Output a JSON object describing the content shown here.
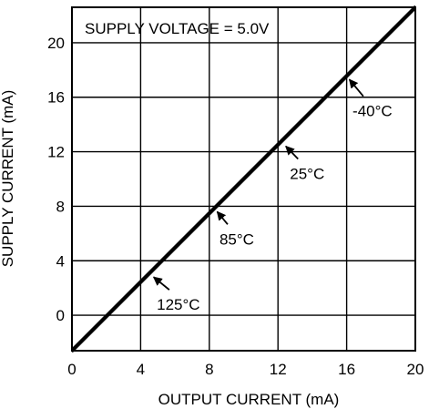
{
  "chart_data": {
    "type": "line",
    "title": "",
    "xlabel": "OUTPUT CURRENT (mA)",
    "ylabel": "SUPPLY CURRENT (mA)",
    "xlim": [
      0,
      20
    ],
    "ylim": [
      -2.6,
      22.6
    ],
    "x_ticks": [
      0,
      4,
      8,
      12,
      16,
      20
    ],
    "y_ticks": [
      0,
      4,
      8,
      12,
      16,
      20
    ],
    "grid": true,
    "series_color": "#000000",
    "series": [
      {
        "name": "125°C",
        "x": [
          0,
          20
        ],
        "y": [
          -2.6,
          22.6
        ]
      },
      {
        "name": "85°C",
        "x": [
          0,
          20
        ],
        "y": [
          -2.6,
          22.6
        ]
      },
      {
        "name": "25°C",
        "x": [
          0,
          20
        ],
        "y": [
          -2.6,
          22.6
        ]
      },
      {
        "name": "-40°C",
        "x": [
          0,
          20
        ],
        "y": [
          -2.6,
          22.6
        ]
      }
    ],
    "annotations": [
      {
        "text": "SUPPLY VOLTAGE = 5.0V"
      },
      {
        "text": "-40°C",
        "point": [
          16,
          17.5
        ],
        "label_at": [
          17.5,
          14.6
        ]
      },
      {
        "text": "25°C",
        "point": [
          12.3,
          12.6
        ],
        "label_at": [
          13.7,
          10.0
        ]
      },
      {
        "text": "85°C",
        "point": [
          8.3,
          7.8
        ],
        "label_at": [
          9.6,
          5.2
        ]
      },
      {
        "text": "125°C",
        "point": [
          4.6,
          3.0
        ],
        "label_at": [
          6.2,
          0.4
        ]
      }
    ]
  }
}
